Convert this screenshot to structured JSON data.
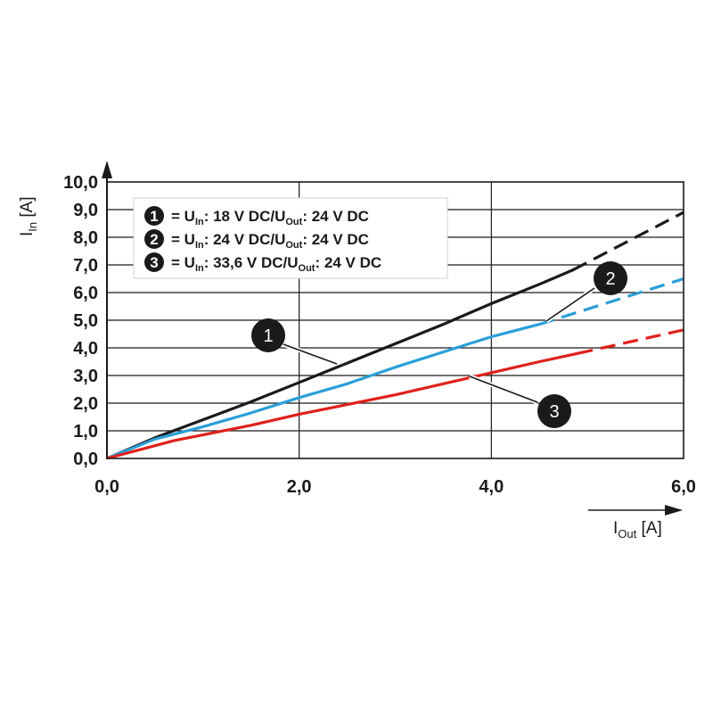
{
  "chart_data": {
    "type": "line",
    "xlim": [
      0,
      6
    ],
    "ylim": [
      0,
      10
    ],
    "x_ticks": [
      "0,0",
      "2,0",
      "4,0",
      "6,0"
    ],
    "y_ticks": [
      "0,0",
      "1,0",
      "2,0",
      "3,0",
      "4,0",
      "5,0",
      "6,0",
      "7,0",
      "8,0",
      "9,0",
      "10,0"
    ],
    "xlabel": {
      "main": "I",
      "sub": "Out",
      "unit": "[A]"
    },
    "ylabel": {
      "main": "I",
      "sub": "In",
      "unit": "[A]"
    },
    "grid": true,
    "legend_position": "top-left",
    "series": [
      {
        "id": "1",
        "color": "#1a1a1a",
        "legend": [
          "= U",
          "In",
          ": 18 V DC/U",
          "Out",
          ": 24 V DC"
        ],
        "solid": [
          [
            0,
            0
          ],
          [
            0.5,
            0.75
          ],
          [
            1.0,
            1.4
          ],
          [
            1.5,
            2.05
          ],
          [
            2.0,
            2.75
          ],
          [
            2.5,
            3.45
          ],
          [
            3.0,
            4.15
          ],
          [
            3.5,
            4.85
          ],
          [
            4.0,
            5.6
          ],
          [
            4.5,
            6.3
          ],
          [
            4.85,
            6.82
          ]
        ],
        "dashed": [
          [
            4.85,
            6.82
          ],
          [
            6.0,
            8.9
          ]
        ]
      },
      {
        "id": "2",
        "color": "#2a9fd8",
        "legend": [
          "= U",
          "In",
          ": 24 V DC/U",
          "Out",
          ": 24 V DC"
        ],
        "solid": [
          [
            0,
            0
          ],
          [
            0.5,
            0.7
          ],
          [
            1.0,
            1.15
          ],
          [
            1.5,
            1.65
          ],
          [
            2.0,
            2.2
          ],
          [
            2.5,
            2.7
          ],
          [
            3.0,
            3.3
          ],
          [
            3.5,
            3.85
          ],
          [
            4.0,
            4.4
          ],
          [
            4.5,
            4.85
          ]
        ],
        "dashed": [
          [
            4.5,
            4.85
          ],
          [
            6.0,
            6.5
          ]
        ]
      },
      {
        "id": "3",
        "color": "#e0201a",
        "legend": [
          "= U",
          "In",
          ": 33,6 V DC/U",
          "Out",
          ": 24 V DC"
        ],
        "solid": [
          [
            0,
            0
          ],
          [
            0.7,
            0.65
          ],
          [
            1.0,
            0.85
          ],
          [
            1.5,
            1.2
          ],
          [
            2.0,
            1.6
          ],
          [
            2.5,
            1.95
          ],
          [
            3.0,
            2.3
          ],
          [
            3.5,
            2.7
          ],
          [
            4.0,
            3.1
          ],
          [
            4.5,
            3.5
          ],
          [
            4.9,
            3.8
          ]
        ],
        "dashed": [
          [
            4.9,
            3.8
          ],
          [
            6.0,
            4.65
          ]
        ]
      }
    ]
  }
}
